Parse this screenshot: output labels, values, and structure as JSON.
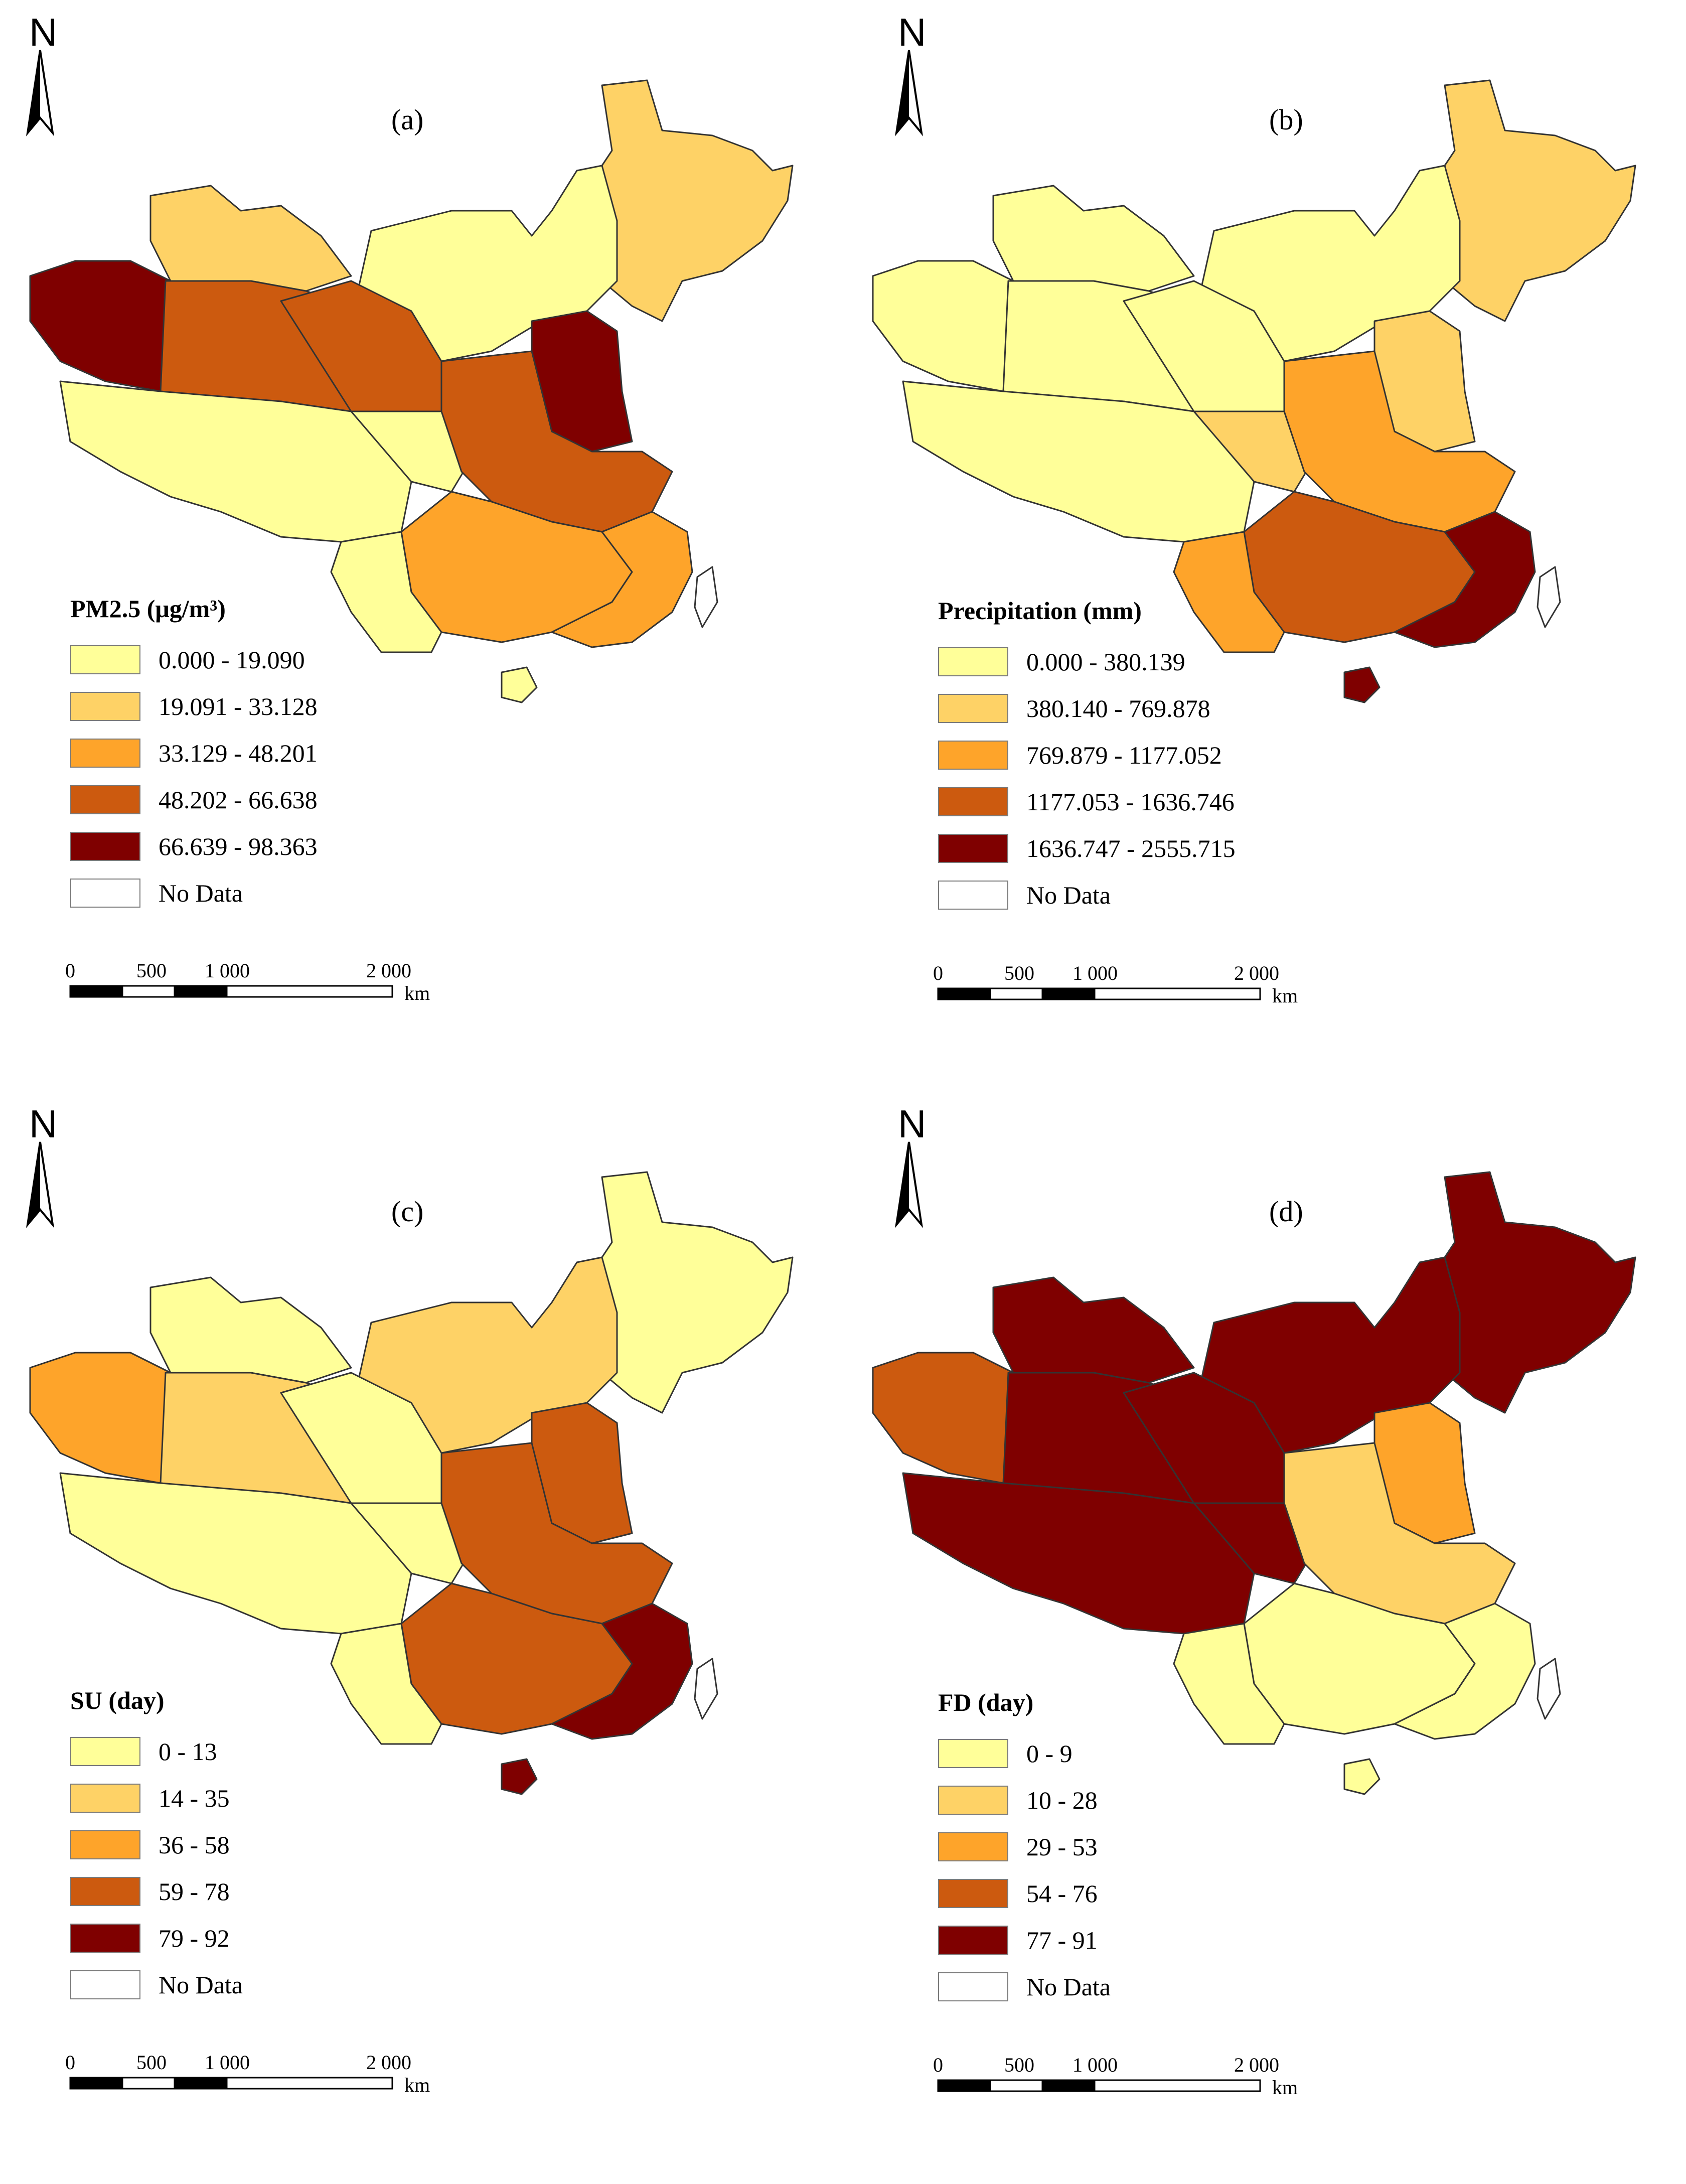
{
  "north_label": "N",
  "scale": {
    "ticks": [
      "0",
      "500",
      "1 000",
      "2 000"
    ],
    "unit": "km"
  },
  "panels": [
    {
      "label": "(a)",
      "legend_title": "PM2.5 (μg/m³)",
      "classes": [
        "0.000 - 19.090",
        "19.091 - 33.128",
        "33.129 - 48.201",
        "48.202 - 66.638",
        "66.639 - 98.363"
      ],
      "no_data": "No Data"
    },
    {
      "label": "(b)",
      "legend_title": "Precipitation (mm)",
      "classes": [
        "0.000 - 380.139",
        "380.140 - 769.878",
        "769.879 - 1177.052",
        "1177.053 - 1636.746",
        "1636.747 - 2555.715"
      ],
      "no_data": "No Data"
    },
    {
      "label": "(c)",
      "legend_title": "SU (day)",
      "classes": [
        "0 - 13",
        "14 - 35",
        "36 - 58",
        "59 - 78",
        "79 - 92"
      ],
      "no_data": "No Data"
    },
    {
      "label": "(d)",
      "legend_title": "FD (day)",
      "classes": [
        "0 - 9",
        "10 - 28",
        "29 - 53",
        "54 - 76",
        "77 - 91"
      ],
      "no_data": "No Data"
    }
  ],
  "colors": {
    "class_1": "#ffff99",
    "class_2": "#fed266",
    "class_3": "#fea42a",
    "class_4": "#cc5a0f",
    "class_5": "#7f0000",
    "no_data": "#ffffff"
  }
}
